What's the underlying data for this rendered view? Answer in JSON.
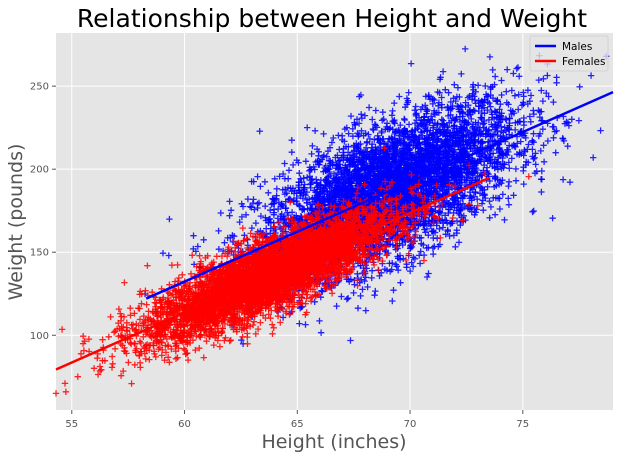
{
  "chart_data": {
    "type": "scatter",
    "title": "Relationship between Height and Weight",
    "xlabel": "Height (inches)",
    "ylabel": "Weight (pounds)",
    "xlim": [
      54.3,
      79.0
    ],
    "ylim": [
      55,
      282
    ],
    "xticks": [
      55,
      60,
      65,
      70,
      75
    ],
    "yticks": [
      100,
      150,
      200,
      250
    ],
    "grid": true,
    "legend_position": "top-right",
    "series": [
      {
        "name": "Males",
        "color": "#0000ff",
        "marker": "plus",
        "point_count": 5000,
        "x_mean": 69.0,
        "x_std": 2.86,
        "y_std": 19.8,
        "sample_points": [
          [
            70.0,
            210
          ],
          [
            72.0,
            215
          ],
          [
            74.0,
            230
          ],
          [
            77.0,
            228
          ],
          [
            78.7,
            268
          ],
          [
            76.5,
            252
          ],
          [
            66.0,
            185
          ],
          [
            62.0,
            172
          ],
          [
            60.5,
            135
          ],
          [
            59.3,
            148
          ],
          [
            73.0,
            205
          ],
          [
            68.0,
            175
          ]
        ],
        "fit_line": {
          "x": [
            58.3,
            79.0
          ],
          "y": [
            122.1,
            246.4
          ]
        }
      },
      {
        "name": "Females",
        "color": "#ff0000",
        "marker": "plus",
        "point_count": 5000,
        "x_mean": 63.7,
        "x_std": 2.7,
        "y_std": 10.7,
        "sample_points": [
          [
            54.3,
            65
          ],
          [
            54.7,
            71
          ],
          [
            55.5,
            95
          ],
          [
            56.4,
            91
          ],
          [
            58.0,
            88
          ],
          [
            60.0,
            115
          ],
          [
            63.0,
            130
          ],
          [
            66.0,
            152
          ],
          [
            70.0,
            172
          ],
          [
            72.0,
            190
          ],
          [
            73.0,
            178
          ],
          [
            68.0,
            160
          ]
        ],
        "fit_line": {
          "x": [
            54.3,
            73.5
          ],
          "y": [
            79.4,
            194.7
          ]
        }
      }
    ]
  }
}
